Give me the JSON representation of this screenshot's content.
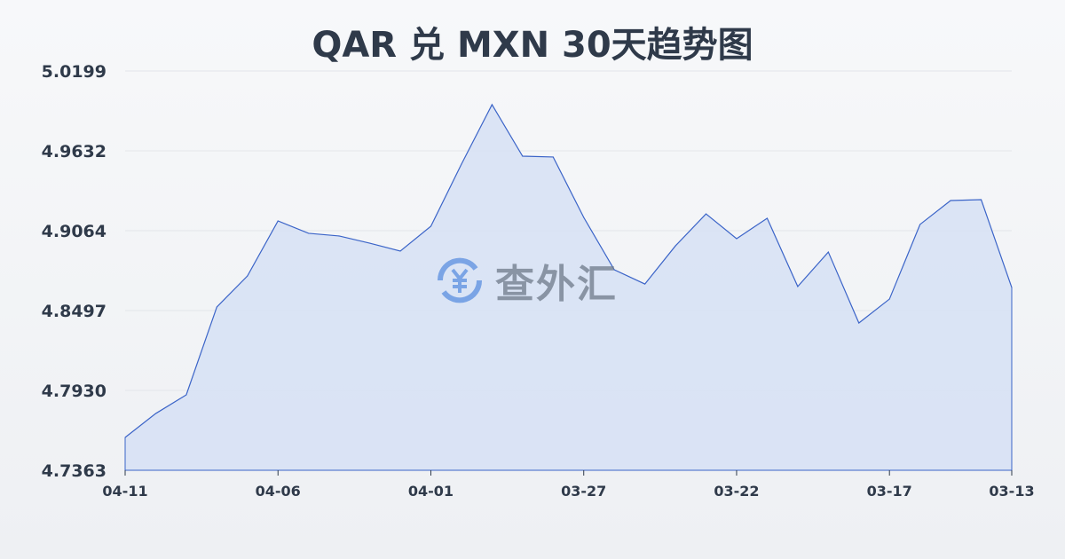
{
  "chart_data": {
    "type": "area",
    "title": "QAR 兑 MXN 30天趋势图",
    "xlabel": "",
    "ylabel": "",
    "x": [
      "04-11",
      "04-10",
      "04-09",
      "04-08",
      "04-07",
      "04-06",
      "04-05",
      "04-04",
      "04-03",
      "04-02",
      "04-01",
      "03-31",
      "03-30",
      "03-29",
      "03-28",
      "03-27",
      "03-26",
      "03-25",
      "03-24",
      "03-23",
      "03-22",
      "03-21",
      "03-20",
      "03-19",
      "03-18",
      "03-17",
      "03-16",
      "03-15",
      "03-14",
      "03-13"
    ],
    "values": [
      4.7596,
      4.7766,
      4.7899,
      4.8523,
      4.8743,
      4.9134,
      4.9046,
      4.9027,
      4.8976,
      4.892,
      4.9096,
      4.9537,
      4.996,
      4.9594,
      4.9588,
      4.9159,
      4.8787,
      4.8686,
      4.8957,
      4.9184,
      4.9008,
      4.9153,
      4.8668,
      4.8913,
      4.8409,
      4.8579,
      4.9109,
      4.9279,
      4.9285,
      4.8661
    ],
    "x_tick_labels": [
      "04-11",
      "04-06",
      "04-01",
      "03-27",
      "03-22",
      "03-17",
      "03-13"
    ],
    "y_tick_labels": [
      "5.0199",
      "4.9632",
      "4.9064",
      "4.8497",
      "4.7930",
      "4.7363"
    ],
    "ylim": [
      4.7363,
      5.0199
    ],
    "grid": true,
    "line_color": "#3b64c8",
    "fill_color": "#d6e0f5"
  },
  "watermark": {
    "text": "查外汇",
    "icon": "yen-exchange-icon"
  }
}
